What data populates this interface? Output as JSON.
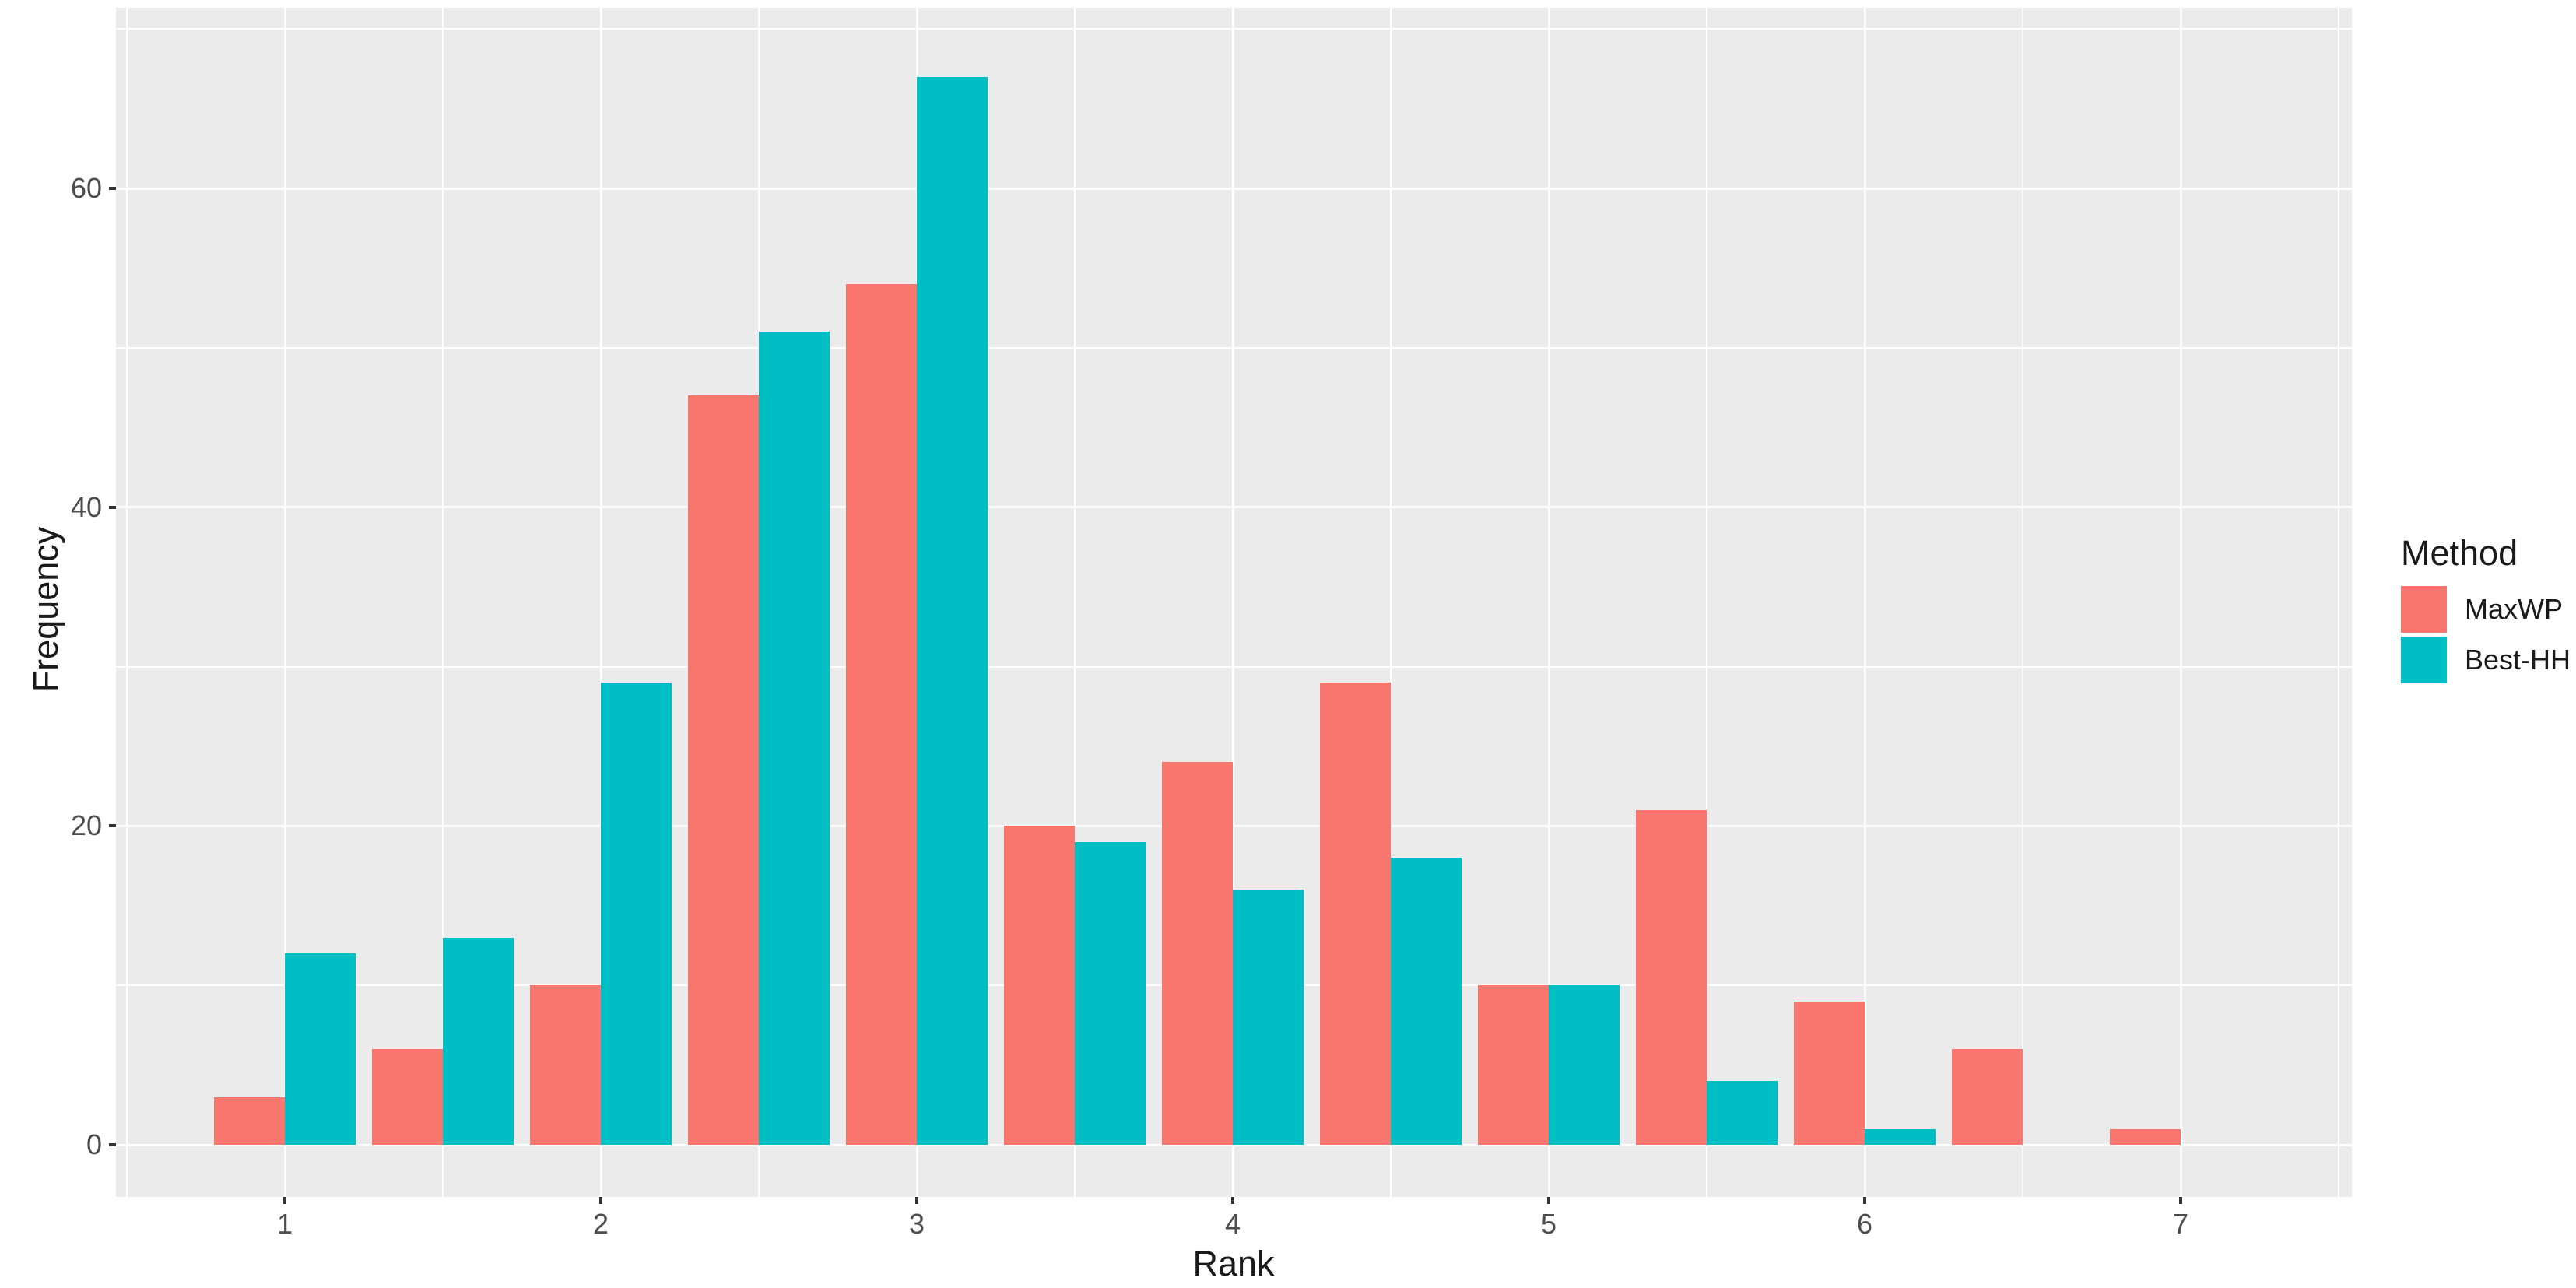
{
  "chart_data": {
    "type": "bar",
    "title": "",
    "xlabel": "Rank",
    "ylabel": "Frequency",
    "categories": [
      1,
      1.5,
      2,
      2.5,
      3,
      3.5,
      4,
      4.5,
      5,
      5.5,
      6,
      6.5,
      7
    ],
    "series": [
      {
        "name": "MaxWP",
        "color": "#F8766D",
        "values": [
          3,
          6,
          10,
          47,
          54,
          20,
          24,
          29,
          10,
          21,
          9,
          6,
          1
        ]
      },
      {
        "name": "Best-HH",
        "color": "#00BFC4",
        "values": [
          12,
          13,
          29,
          51,
          67,
          19,
          16,
          18,
          10,
          4,
          1,
          0,
          0
        ]
      }
    ],
    "x_ticks": [
      1,
      2,
      3,
      4,
      5,
      6,
      7
    ],
    "y_ticks": [
      0,
      20,
      40,
      60
    ],
    "y_minor_gridlines": [
      10,
      30,
      50,
      70
    ],
    "x_minor_gridlines": [
      0.5,
      1.5,
      2.5,
      3.5,
      4.5,
      5.5,
      6.5,
      7.5
    ],
    "xlim": [
      0.45,
      7.55
    ],
    "ylim": [
      0,
      70
    ],
    "grid": true,
    "legend": {
      "title": "Method",
      "position": "right"
    },
    "colors": {
      "panel_background": "#EBEBEB",
      "gridline": "#FFFFFF",
      "tick_label": "#4D4D4D",
      "axis_title": "#1A1A1A",
      "tick_mark": "#333333"
    }
  }
}
